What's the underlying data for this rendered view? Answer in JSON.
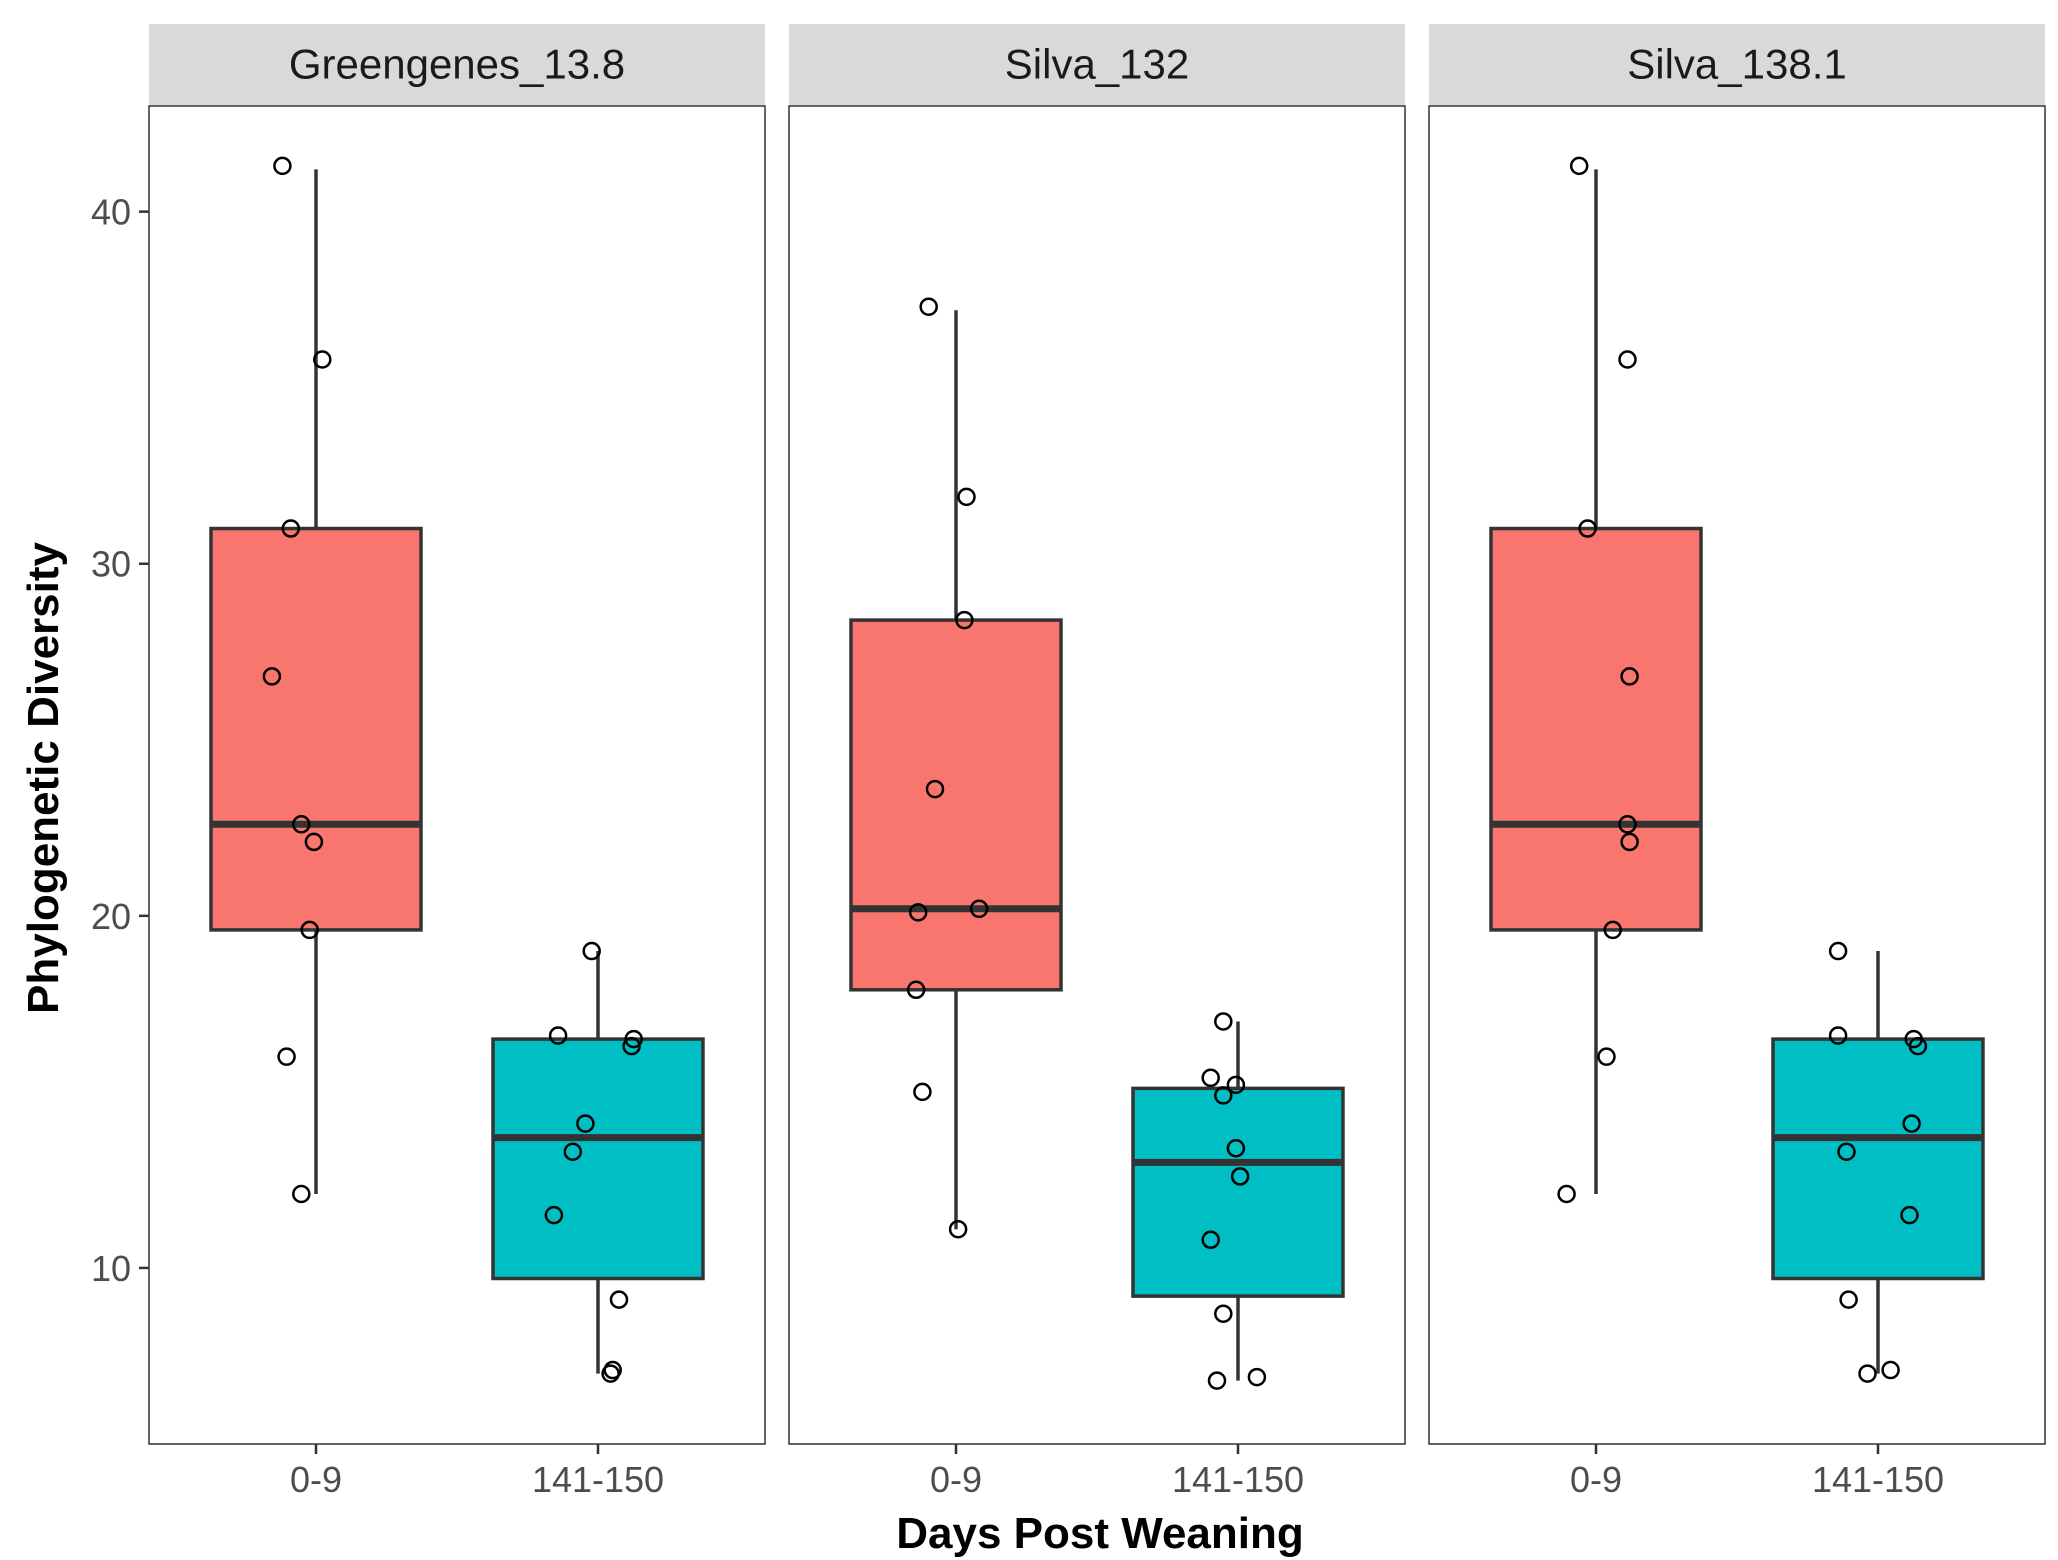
{
  "chart_data": {
    "type": "boxplot",
    "xlabel": "Days Post Weaning",
    "ylabel": "Phylogenetic Diversity",
    "ylim": [
      5,
      43
    ],
    "yticks": [
      10,
      20,
      30,
      40
    ],
    "categories": [
      "0-9",
      "141-150"
    ],
    "grid": false,
    "legend": "none",
    "fill_colors": {
      "0-9": "#F8766D",
      "141-150": "#00BFC4"
    },
    "panels": [
      {
        "title": "Greengenes_13.8",
        "groups": [
          {
            "category": "0-9",
            "whisker_low": 12.1,
            "q1": 19.6,
            "median": 22.6,
            "q3": 31.0,
            "whisker_high": 41.2,
            "points": [
              [
                -0.16,
                41.3
              ],
              [
                0.03,
                35.8
              ],
              [
                -0.12,
                31.0
              ],
              [
                -0.21,
                26.8
              ],
              [
                -0.07,
                22.6
              ],
              [
                -0.01,
                22.1
              ],
              [
                -0.03,
                19.6
              ],
              [
                -0.14,
                16.0
              ],
              [
                -0.07,
                12.1
              ]
            ]
          },
          {
            "category": "141-150",
            "whisker_low": 7.0,
            "q1": 9.7,
            "median": 13.7,
            "q3": 16.5,
            "whisker_high": 19.0,
            "points": [
              [
                -0.03,
                19.0
              ],
              [
                -0.19,
                16.6
              ],
              [
                0.17,
                16.5
              ],
              [
                0.16,
                16.3
              ],
              [
                -0.06,
                14.1
              ],
              [
                -0.12,
                13.3
              ],
              [
                -0.21,
                11.5
              ],
              [
                0.1,
                9.1
              ],
              [
                0.06,
                7.0
              ],
              [
                0.07,
                7.1
              ]
            ]
          }
        ]
      },
      {
        "title": "Silva_132",
        "groups": [
          {
            "category": "0-9",
            "whisker_low": 11.1,
            "q1": 17.9,
            "median": 20.2,
            "q3": 28.4,
            "whisker_high": 37.2,
            "points": [
              [
                -0.13,
                37.3
              ],
              [
                0.05,
                31.9
              ],
              [
                0.04,
                28.4
              ],
              [
                -0.1,
                23.6
              ],
              [
                -0.18,
                20.1
              ],
              [
                0.11,
                20.2
              ],
              [
                -0.19,
                17.9
              ],
              [
                -0.16,
                15.0
              ],
              [
                0.01,
                11.1
              ]
            ]
          },
          {
            "category": "141-150",
            "whisker_low": 6.8,
            "q1": 9.2,
            "median": 13.0,
            "q3": 15.1,
            "whisker_high": 17.0,
            "points": [
              [
                -0.07,
                17.0
              ],
              [
                -0.13,
                15.4
              ],
              [
                -0.07,
                14.9
              ],
              [
                -0.01,
                15.2
              ],
              [
                -0.01,
                13.4
              ],
              [
                0.01,
                12.6
              ],
              [
                -0.13,
                10.8
              ],
              [
                -0.07,
                8.7
              ],
              [
                -0.1,
                6.8
              ],
              [
                0.09,
                6.9
              ]
            ]
          }
        ]
      },
      {
        "title": "Silva_138.1",
        "groups": [
          {
            "category": "0-9",
            "whisker_low": 12.1,
            "q1": 19.6,
            "median": 22.6,
            "q3": 31.0,
            "whisker_high": 41.2,
            "points": [
              [
                -0.08,
                41.3
              ],
              [
                0.15,
                35.8
              ],
              [
                -0.04,
                31.0
              ],
              [
                0.16,
                26.8
              ],
              [
                0.15,
                22.6
              ],
              [
                0.16,
                22.1
              ],
              [
                0.08,
                19.6
              ],
              [
                0.05,
                16.0
              ],
              [
                -0.14,
                12.1
              ]
            ]
          },
          {
            "category": "141-150",
            "whisker_low": 7.0,
            "q1": 9.7,
            "median": 13.7,
            "q3": 16.5,
            "whisker_high": 19.0,
            "points": [
              [
                -0.19,
                19.0
              ],
              [
                -0.19,
                16.6
              ],
              [
                0.17,
                16.5
              ],
              [
                0.19,
                16.3
              ],
              [
                0.16,
                14.1
              ],
              [
                -0.15,
                13.3
              ],
              [
                0.15,
                11.5
              ],
              [
                -0.14,
                9.1
              ],
              [
                -0.05,
                7.0
              ],
              [
                0.06,
                7.1
              ]
            ]
          }
        ]
      }
    ]
  }
}
